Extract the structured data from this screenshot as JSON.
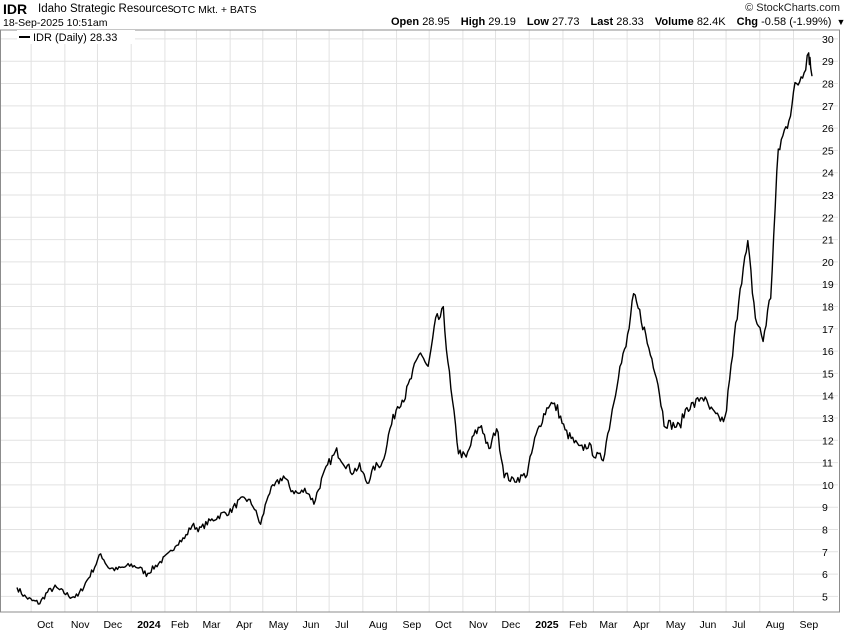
{
  "header": {
    "ticker": "IDR",
    "company": "Idaho Strategic Resources",
    "exchange": "OTC Mkt. + BATS",
    "datetime": "18-Sep-2025 10:51am",
    "copyright": "© StockCharts.com",
    "quote": {
      "open_label": "Open",
      "open": "28.95",
      "high_label": "High",
      "high": "29.19",
      "low_label": "Low",
      "low": "27.73",
      "last_label": "Last",
      "last": "28.33",
      "volume_label": "Volume",
      "volume": "82.4K",
      "chg_label": "Chg",
      "chg": "-0.58 (-1.99%)"
    }
  },
  "legend": {
    "label": "IDR (Daily) 28.33"
  },
  "colors": {
    "line": "#000000",
    "grid": "#e2e2e2",
    "background": "#ffffff"
  },
  "icons": {
    "dropdown": "triangle-down-icon"
  },
  "chart_data": {
    "type": "line",
    "title": "IDR (Daily) 28.33",
    "xlabel": "",
    "ylabel": "",
    "ylim": [
      4.3,
      30.4
    ],
    "yticks": [
      5,
      6,
      7,
      8,
      9,
      10,
      11,
      12,
      13,
      14,
      15,
      16,
      17,
      18,
      19,
      20,
      21,
      22,
      23,
      24,
      25,
      26,
      27,
      28,
      29,
      30
    ],
    "x_ticks": [
      "Oct",
      "Nov",
      "Dec",
      "2024",
      "Feb",
      "Mar",
      "Apr",
      "May",
      "Jun",
      "Jul",
      "Aug",
      "Sep",
      "Oct",
      "Nov",
      "Dec",
      "2025",
      "Feb",
      "Mar",
      "Apr",
      "May",
      "Jun",
      "Jul",
      "Aug",
      "Sep"
    ],
    "x_tick_dates": [
      "2023-10-01",
      "2023-11-01",
      "2023-12-01",
      "2024-01-01",
      "2024-02-01",
      "2024-03-01",
      "2024-04-01",
      "2024-05-01",
      "2024-06-01",
      "2024-07-01",
      "2024-08-01",
      "2024-09-01",
      "2024-10-01",
      "2024-11-01",
      "2024-12-01",
      "2025-01-01",
      "2025-02-01",
      "2025-03-01",
      "2025-04-01",
      "2025-05-01",
      "2025-06-01",
      "2025-07-01",
      "2025-08-01",
      "2025-09-01"
    ],
    "x_bold": [
      "2024",
      "2025"
    ],
    "grid": true,
    "legend_position": "top-left",
    "series": [
      {
        "name": "IDR (Daily)",
        "x": [
          "2023-09-18",
          "2023-09-25",
          "2023-10-02",
          "2023-10-09",
          "2023-10-16",
          "2023-10-23",
          "2023-10-30",
          "2023-11-06",
          "2023-11-13",
          "2023-11-20",
          "2023-11-27",
          "2023-12-04",
          "2023-12-11",
          "2023-12-18",
          "2023-12-25",
          "2024-01-01",
          "2024-01-08",
          "2024-01-15",
          "2024-01-22",
          "2024-01-29",
          "2024-02-05",
          "2024-02-12",
          "2024-02-19",
          "2024-02-26",
          "2024-03-04",
          "2024-03-11",
          "2024-03-18",
          "2024-03-25",
          "2024-04-01",
          "2024-04-08",
          "2024-04-15",
          "2024-04-22",
          "2024-04-29",
          "2024-05-06",
          "2024-05-13",
          "2024-05-20",
          "2024-05-27",
          "2024-06-03",
          "2024-06-10",
          "2024-06-17",
          "2024-06-24",
          "2024-07-01",
          "2024-07-08",
          "2024-07-15",
          "2024-07-22",
          "2024-07-29",
          "2024-08-05",
          "2024-08-12",
          "2024-08-19",
          "2024-08-26",
          "2024-09-02",
          "2024-09-09",
          "2024-09-16",
          "2024-09-23",
          "2024-09-30",
          "2024-10-07",
          "2024-10-14",
          "2024-10-21",
          "2024-10-28",
          "2024-11-04",
          "2024-11-11",
          "2024-11-18",
          "2024-11-25",
          "2024-12-02",
          "2024-12-09",
          "2024-12-16",
          "2024-12-23",
          "2024-12-30",
          "2025-01-06",
          "2025-01-13",
          "2025-01-20",
          "2025-01-27",
          "2025-02-03",
          "2025-02-10",
          "2025-02-17",
          "2025-02-24",
          "2025-03-03",
          "2025-03-10",
          "2025-03-17",
          "2025-03-24",
          "2025-03-31",
          "2025-04-07",
          "2025-04-14",
          "2025-04-21",
          "2025-04-28",
          "2025-05-05",
          "2025-05-12",
          "2025-05-19",
          "2025-05-26",
          "2025-06-02",
          "2025-06-09",
          "2025-06-16",
          "2025-06-23",
          "2025-06-30",
          "2025-07-07",
          "2025-07-14",
          "2025-07-21",
          "2025-07-28",
          "2025-08-04",
          "2025-08-11",
          "2025-08-18",
          "2025-08-25",
          "2025-09-01",
          "2025-09-08",
          "2025-09-15",
          "2025-09-18"
        ],
        "values": [
          5.4,
          5.0,
          4.8,
          4.7,
          5.2,
          5.4,
          5.2,
          5.0,
          5.0,
          5.6,
          6.2,
          6.9,
          6.3,
          6.2,
          6.3,
          6.4,
          6.3,
          6.0,
          6.3,
          6.6,
          6.9,
          7.4,
          7.6,
          8.2,
          8.0,
          8.3,
          8.5,
          8.7,
          8.8,
          9.2,
          9.4,
          9.1,
          8.2,
          9.6,
          10.0,
          10.4,
          9.8,
          9.6,
          9.8,
          9.2,
          10.2,
          11.0,
          11.5,
          11.0,
          10.6,
          10.8,
          10.1,
          10.8,
          11.0,
          12.5,
          13.6,
          14.0,
          15.0,
          16.0,
          15.2,
          17.3,
          17.7,
          14.2,
          11.5,
          11.2,
          12.2,
          12.7,
          11.5,
          12.6,
          10.5,
          10.2,
          10.3,
          10.5,
          12.0,
          13.0,
          13.7,
          13.4,
          12.4,
          12.0,
          11.6,
          11.8,
          11.3,
          11.2,
          13.0,
          15.0,
          16.2,
          18.4,
          17.5,
          16.1,
          15.0,
          12.8,
          12.7,
          12.6,
          13.5,
          13.6,
          14.0,
          13.4,
          13.0,
          12.9,
          15.8,
          19.0,
          20.7,
          17.5,
          16.5,
          18.5,
          25.0,
          26.0,
          27.5,
          28.4,
          29.5,
          28.33
        ]
      }
    ]
  }
}
